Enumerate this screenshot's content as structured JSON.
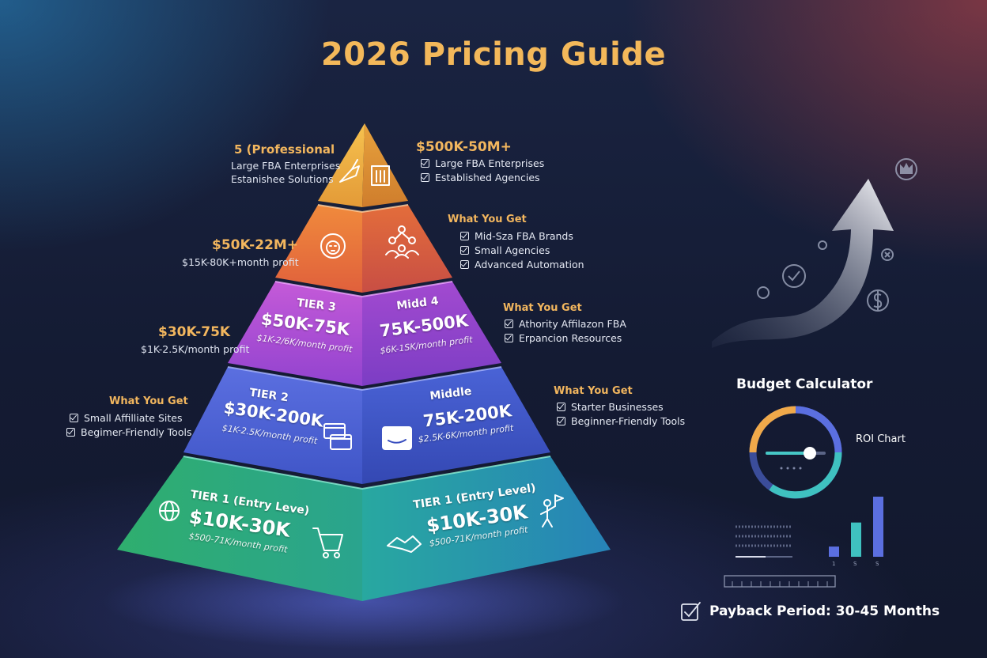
{
  "title": "2026 Pricing Guide",
  "colors": {
    "accent": "#f3b85a",
    "tier_top": "#e9a23f",
    "tier_4": "#e8743a",
    "tier_3": "#a54bd0",
    "tier_2": "#4a5fd0",
    "tier_1": "#27a58c",
    "background": "#161d36"
  },
  "side_labels": {
    "top_left": {
      "heading": "5 (Professional",
      "lines": [
        "Large FBA Enterprises",
        "Estanishee Solutions"
      ]
    },
    "top_right": {
      "heading": "$500K-50M+",
      "items": [
        "Large FBA Enterprises",
        "Established Agencies"
      ]
    },
    "tier4_left": {
      "heading": "$50K-22M+",
      "sub": "$15K-80K+month profit"
    },
    "tier4_right": {
      "heading": "What You Get",
      "items": [
        "Mid-Sza FBA Brands",
        "Small Agencies",
        "Advanced Automation"
      ]
    },
    "tier3_left": {
      "heading": "$30K-75K",
      "sub": "$1K-2.5K/month profit"
    },
    "tier3_right": {
      "heading": "What You Get",
      "items": [
        "Athority Affilazon FBA",
        "Erpancion Resources"
      ]
    },
    "tier2_left": {
      "heading": "What You Get",
      "items": [
        "Small Affilliate Sites",
        "Begimer-Friendly Tools"
      ]
    },
    "tier2_right": {
      "heading": "What You Get",
      "items": [
        "Starter Businesses",
        "Beginner-Friendly Tools"
      ]
    }
  },
  "faces": {
    "tier3_left": {
      "tier": "TIER 3",
      "price": "$50K-75K",
      "profit": "$1K-2/6K/month profit"
    },
    "tier3_right": {
      "tier": "Midd 4",
      "price": "75K-500K",
      "profit": "$6K-1SK/month profit"
    },
    "tier2_left": {
      "tier": "TIER 2",
      "price": "$30K-200K",
      "profit": "$1K-2.5K/month profit"
    },
    "tier2_right": {
      "tier": "Middle",
      "price": "75K-200K",
      "profit": "$2.5K-6K/month profit"
    },
    "tier1_left": {
      "tier": "TIER 1 (Entry Leve)",
      "price": "$10K-30K",
      "profit": "$500-71K/month profit"
    },
    "tier1_right": {
      "tier": "TIER 1 (Entry Level)",
      "price": "$10K-30K",
      "profit": "$500-71K/month profit"
    }
  },
  "icons": {
    "top": [
      "eagle-icon",
      "building-icon"
    ],
    "tier4": [
      "lion-icon",
      "team-icon"
    ],
    "tier2": [
      "browser-windows-icon",
      "amazon-box-icon"
    ],
    "tier1": [
      "globe-icon",
      "shopping-cart-icon",
      "handshake-icon",
      "person-flag-icon"
    ],
    "decor": [
      "crown-icon",
      "check-circle-icon",
      "dollar-circle-icon",
      "close-circle-icon",
      "growth-arrow-icon"
    ]
  },
  "calculator": {
    "title": "Budget Calculator",
    "roi_label": "ROI Chart",
    "bar_labels": [
      "1",
      "S",
      "S"
    ],
    "bar_values": [
      0.17,
      0.57,
      1.0
    ],
    "slider_value": 0.75
  },
  "payback": "Payback Period: 30-45 Months"
}
